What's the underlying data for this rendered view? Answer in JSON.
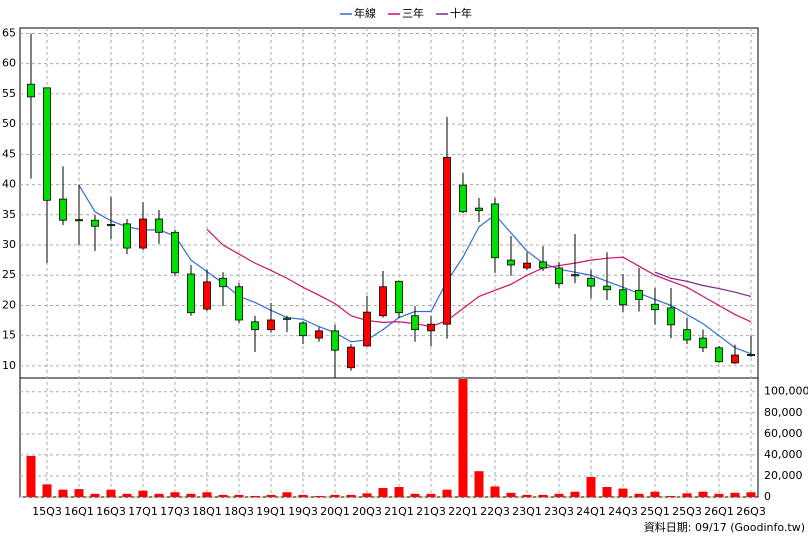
{
  "chart_data": {
    "type": "candlestick",
    "categories": [
      null,
      "15Q3",
      null,
      "16Q1",
      null,
      "16Q3",
      null,
      "17Q1",
      null,
      "17Q3",
      null,
      "18Q1",
      null,
      "18Q3",
      null,
      "19Q1",
      null,
      "19Q3",
      null,
      "20Q1",
      null,
      "20Q3",
      null,
      "21Q1",
      null,
      "21Q3",
      null,
      "22Q1",
      null,
      "22Q3",
      null,
      "23Q1",
      null,
      "23Q3",
      null,
      "24Q1",
      null,
      "24Q3",
      null,
      "25Q1",
      null,
      "25Q3",
      null,
      "26Q1",
      null,
      "26Q3"
    ],
    "open": [
      56.6,
      56,
      37.6,
      34.2,
      34.1,
      33.4,
      33.5,
      29.5,
      34.3,
      32.1,
      25.2,
      19.4,
      24.5,
      23.1,
      17.3,
      16,
      17.9,
      17.1,
      14.6,
      15.8,
      9.7,
      13.3,
      18.3,
      24,
      18.3,
      15.8,
      16.9,
      39.9,
      36.1,
      36.8,
      27.5,
      26.2,
      27.2,
      26.2,
      25.1,
      24.5,
      23.2,
      22.6,
      22.5,
      20.2,
      19.6,
      16,
      14.6,
      13,
      10.5,
      11.9
    ],
    "high": [
      65,
      56,
      43,
      40,
      35,
      38,
      34.3,
      37.1,
      35.8,
      32.5,
      26.7,
      25.9,
      25.5,
      23.7,
      18.3,
      20.4,
      18.3,
      17.4,
      16.4,
      16.8,
      13.6,
      21.6,
      25.7,
      24,
      19.9,
      18.3,
      51.2,
      41.9,
      37.8,
      37.8,
      31.5,
      28.8,
      29.8,
      27.2,
      31.8,
      25.9,
      28.8,
      25.2,
      26.2,
      22.9,
      22.9,
      17.9,
      16,
      13.3,
      13.5,
      15
    ],
    "low": [
      41,
      27,
      33.3,
      30,
      29,
      31,
      28.5,
      29.2,
      30.2,
      24.9,
      18.3,
      19.1,
      19.9,
      17.1,
      12.3,
      15.5,
      15.6,
      13.6,
      14,
      8,
      9.2,
      13.3,
      18,
      17.9,
      14,
      13.3,
      14.5,
      35.3,
      33.8,
      25.4,
      24.9,
      25.9,
      25.7,
      22.9,
      23.7,
      21.2,
      20.9,
      18.9,
      19,
      16.8,
      14.6,
      13.6,
      12.3,
      10.5,
      10.3,
      11.5
    ],
    "close": [
      54.5,
      37.4,
      34.1,
      34,
      33.1,
      33.2,
      29.5,
      34.3,
      32.1,
      25.4,
      18.8,
      23.9,
      23.1,
      17.6,
      16,
      17.6,
      17.7,
      15,
      15.8,
      12.6,
      13.1,
      18.9,
      23.1,
      18.8,
      16,
      16.9,
      44.5,
      35.5,
      35.7,
      27.9,
      26.7,
      27,
      26.2,
      23.6,
      24.9,
      23.2,
      22.6,
      20.1,
      21,
      19.3,
      16.8,
      14.3,
      13,
      10.7,
      11.8,
      11.7
    ],
    "volume": [
      39000,
      12000,
      7000,
      7500,
      3000,
      7000,
      3000,
      6000,
      3000,
      4500,
      3000,
      4500,
      2000,
      2000,
      1000,
      2000,
      4500,
      2000,
      1000,
      2000,
      2000,
      3500,
      8500,
      9500,
      3000,
      3000,
      7000,
      112000,
      24500,
      10000,
      4000,
      2000,
      2000,
      3000,
      5000,
      19000,
      9500,
      8000,
      3000,
      5000,
      1000,
      3500,
      5000,
      3000,
      4000,
      4500
    ],
    "up_color": "#ff0000",
    "down_color": "#00e000",
    "volume_color": "#ff0000",
    "series": [
      {
        "name": "年線",
        "color": "#2f6fd0",
        "values": [
          null,
          null,
          null,
          39.9,
          35.5,
          34,
          33,
          32.5,
          32.5,
          31.5,
          27.5,
          25.6,
          23.7,
          21.5,
          20.5,
          19.2,
          18,
          17.7,
          16.5,
          15.5,
          14,
          14.3,
          16,
          18,
          19,
          19,
          24,
          28,
          33,
          35,
          32,
          29,
          27,
          26,
          25.5,
          25,
          24,
          23,
          22,
          21,
          20,
          18.5,
          17,
          15,
          13,
          12
        ]
      },
      {
        "name": "三年",
        "color": "#d0106a",
        "values": [
          null,
          null,
          null,
          null,
          null,
          null,
          null,
          null,
          null,
          null,
          null,
          32.6,
          30,
          28.5,
          27,
          25.8,
          24.5,
          23,
          21.7,
          20.3,
          18.3,
          17.5,
          17.2,
          17.3,
          17,
          16.5,
          17.5,
          19.5,
          21.5,
          22.5,
          23.5,
          25,
          26.2,
          26.6,
          27,
          27.5,
          27.8,
          28,
          26.5,
          25,
          24,
          23,
          21.5,
          20,
          18.5,
          17.3
        ]
      },
      {
        "name": "十年",
        "color": "#802090",
        "values": [
          null,
          null,
          null,
          null,
          null,
          null,
          null,
          null,
          null,
          null,
          null,
          null,
          null,
          null,
          null,
          null,
          null,
          null,
          null,
          null,
          null,
          null,
          null,
          null,
          null,
          null,
          null,
          null,
          null,
          null,
          null,
          null,
          null,
          null,
          null,
          null,
          null,
          null,
          null,
          25.5,
          24.5,
          24,
          23.3,
          22.8,
          22.2,
          21.5
        ]
      }
    ],
    "ylim": [
      8,
      65.9
    ],
    "yticks": [
      10,
      15,
      20,
      25,
      30,
      35,
      40,
      45,
      50,
      55,
      60,
      65
    ],
    "y2lim": [
      0,
      113000
    ],
    "y2ticks": [
      0,
      {
        "value": 20000,
        "label": "20,000"
      },
      {
        "value": 40000,
        "label": "40,000"
      },
      {
        "value": 60000,
        "label": "60,000"
      },
      {
        "value": 80000,
        "label": "80,000"
      },
      {
        "value": 100000,
        "label": "100,000"
      }
    ],
    "grid": true,
    "footer": "資料日期: 09/17  (Goodinfo.tw)"
  }
}
